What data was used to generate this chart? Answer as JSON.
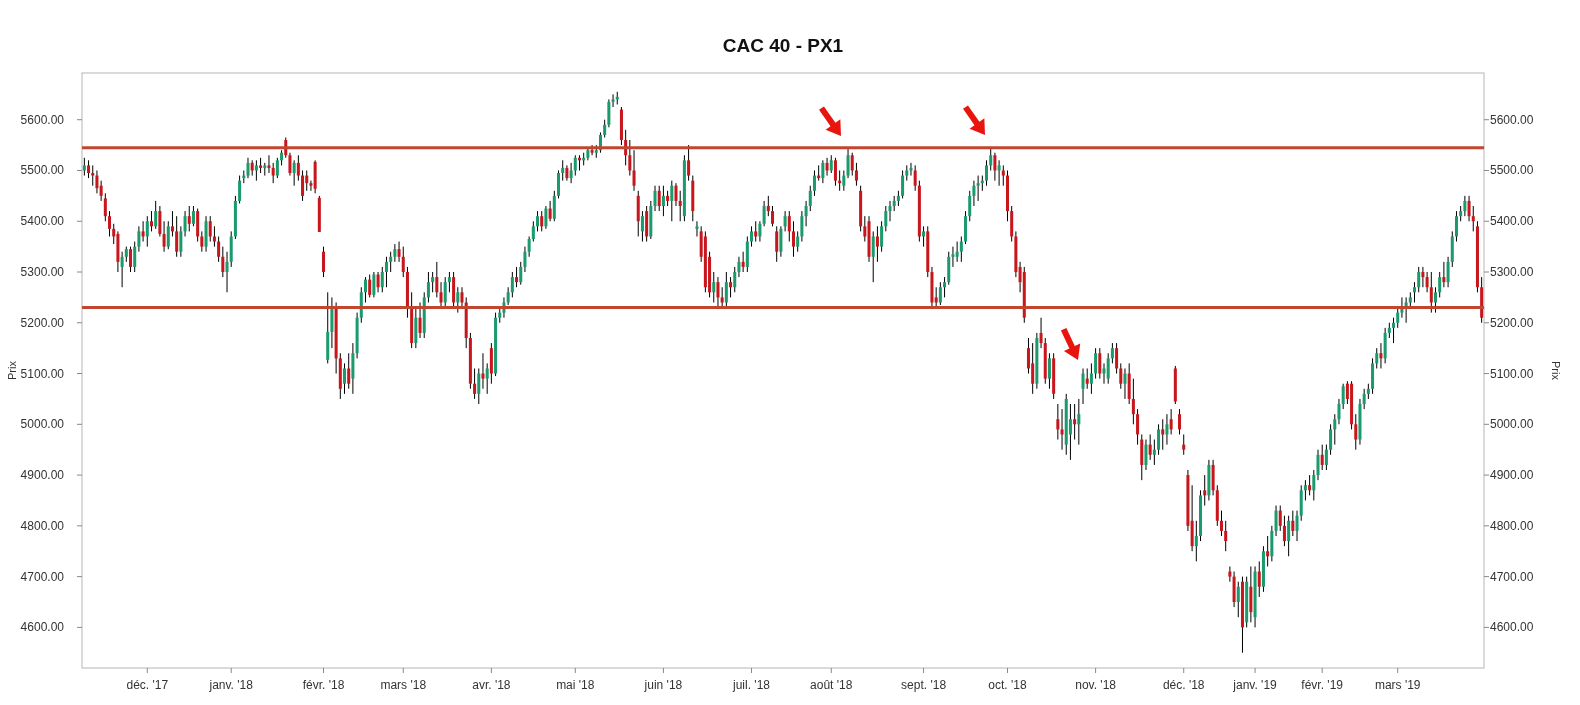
{
  "chart_data": {
    "type": "candlestick",
    "title": "CAC 40 - PX1",
    "ylabel": "Prix",
    "y2label": "Prix",
    "categories": [
      null,
      null,
      null,
      null,
      null,
      null,
      null,
      null,
      null,
      null,
      null,
      null,
      null,
      null,
      null,
      "déc. '17",
      null,
      null,
      null,
      null,
      null,
      null,
      null,
      null,
      null,
      null,
      null,
      null,
      null,
      null,
      null,
      null,
      null,
      null,
      null,
      "janv. '18",
      null,
      null,
      null,
      null,
      null,
      null,
      null,
      null,
      null,
      null,
      null,
      null,
      null,
      null,
      null,
      null,
      null,
      null,
      null,
      null,
      null,
      "févr. '18",
      null,
      null,
      null,
      null,
      null,
      null,
      null,
      null,
      null,
      null,
      null,
      null,
      null,
      null,
      null,
      null,
      null,
      null,
      "mars '18",
      null,
      null,
      null,
      null,
      null,
      null,
      null,
      null,
      null,
      null,
      null,
      null,
      null,
      null,
      null,
      null,
      null,
      null,
      null,
      null,
      "avr. '18",
      null,
      null,
      null,
      null,
      null,
      null,
      null,
      null,
      null,
      null,
      null,
      null,
      null,
      null,
      null,
      null,
      null,
      null,
      null,
      "mai '18",
      null,
      null,
      null,
      null,
      null,
      null,
      null,
      null,
      null,
      null,
      null,
      null,
      null,
      null,
      null,
      null,
      null,
      null,
      null,
      null,
      "juin '18",
      null,
      null,
      null,
      null,
      null,
      null,
      null,
      null,
      null,
      null,
      null,
      null,
      null,
      null,
      null,
      null,
      null,
      null,
      null,
      null,
      "juil. '18",
      null,
      null,
      null,
      null,
      null,
      null,
      null,
      null,
      null,
      null,
      null,
      null,
      null,
      null,
      null,
      null,
      null,
      null,
      "août '18",
      null,
      null,
      null,
      null,
      null,
      null,
      null,
      null,
      null,
      null,
      null,
      null,
      null,
      null,
      null,
      null,
      null,
      null,
      null,
      null,
      null,
      "sept. '18",
      null,
      null,
      null,
      null,
      null,
      null,
      null,
      null,
      null,
      null,
      null,
      null,
      null,
      null,
      null,
      null,
      null,
      null,
      null,
      "oct. '18",
      null,
      null,
      null,
      null,
      null,
      null,
      null,
      null,
      null,
      null,
      null,
      null,
      null,
      null,
      null,
      null,
      null,
      null,
      null,
      null,
      "nov. '18",
      null,
      null,
      null,
      null,
      null,
      null,
      null,
      null,
      null,
      null,
      null,
      null,
      null,
      null,
      null,
      null,
      null,
      null,
      null,
      null,
      "déc. '18",
      null,
      null,
      null,
      null,
      null,
      null,
      null,
      null,
      null,
      null,
      null,
      null,
      null,
      null,
      null,
      null,
      "janv. '19",
      null,
      null,
      null,
      null,
      null,
      null,
      null,
      null,
      null,
      null,
      null,
      null,
      null,
      null,
      null,
      "févr. '19",
      null,
      null,
      null,
      null,
      null,
      null,
      null,
      null,
      null,
      null,
      null,
      null,
      null,
      null,
      null,
      null,
      null,
      "mars '19",
      null,
      null,
      null,
      null,
      null,
      null,
      null,
      null,
      null,
      null,
      null,
      null,
      null,
      null,
      null,
      null,
      null,
      null,
      null,
      null
    ],
    "ohlc": [
      [
        5500,
        5525,
        5490,
        5510
      ],
      [
        5510,
        5520,
        5485,
        5495
      ],
      [
        5495,
        5510,
        5470,
        5490
      ],
      [
        5490,
        5500,
        5455,
        5465
      ],
      [
        5470,
        5480,
        5440,
        5450
      ],
      [
        5445,
        5455,
        5400,
        5410
      ],
      [
        5410,
        5420,
        5370,
        5385
      ],
      [
        5385,
        5395,
        5355,
        5370
      ],
      [
        5375,
        5380,
        5300,
        5320
      ],
      [
        5310,
        5340,
        5270,
        5330
      ],
      [
        5330,
        5350,
        5320,
        5345
      ],
      [
        5345,
        5350,
        5300,
        5310
      ],
      [
        5310,
        5360,
        5300,
        5350
      ],
      [
        5350,
        5390,
        5340,
        5380
      ],
      [
        5380,
        5400,
        5360,
        5370
      ],
      [
        5370,
        5410,
        5350,
        5400
      ],
      [
        5400,
        5420,
        5380,
        5390
      ],
      [
        5390,
        5440,
        5385,
        5420
      ],
      [
        5420,
        5430,
        5370,
        5375
      ],
      [
        5375,
        5400,
        5340,
        5350
      ],
      [
        5350,
        5400,
        5345,
        5390
      ],
      [
        5390,
        5420,
        5370,
        5380
      ],
      [
        5380,
        5410,
        5330,
        5340
      ],
      [
        5340,
        5390,
        5330,
        5380
      ],
      [
        5380,
        5420,
        5370,
        5410
      ],
      [
        5410,
        5430,
        5380,
        5395
      ],
      [
        5395,
        5430,
        5390,
        5420
      ],
      [
        5420,
        5425,
        5360,
        5370
      ],
      [
        5370,
        5380,
        5340,
        5350
      ],
      [
        5350,
        5410,
        5340,
        5400
      ],
      [
        5400,
        5410,
        5360,
        5370
      ],
      [
        5370,
        5390,
        5350,
        5360
      ],
      [
        5360,
        5370,
        5320,
        5330
      ],
      [
        5330,
        5350,
        5290,
        5300
      ],
      [
        5300,
        5340,
        5260,
        5320
      ],
      [
        5320,
        5380,
        5310,
        5370
      ],
      [
        5370,
        5450,
        5365,
        5440
      ],
      [
        5440,
        5490,
        5435,
        5480
      ],
      [
        5485,
        5500,
        5475,
        5490
      ],
      [
        5490,
        5525,
        5485,
        5515
      ],
      [
        5515,
        5520,
        5490,
        5500
      ],
      [
        5500,
        5520,
        5480,
        5510
      ],
      [
        5510,
        5525,
        5495,
        5505
      ],
      [
        5505,
        5515,
        5490,
        5510
      ],
      [
        5510,
        5530,
        5495,
        5505
      ],
      [
        5505,
        5515,
        5475,
        5490
      ],
      [
        5490,
        5525,
        5485,
        5520
      ],
      [
        5520,
        5540,
        5510,
        5535
      ],
      [
        5560,
        5565,
        5525,
        5530
      ],
      [
        5530,
        5535,
        5490,
        5495
      ],
      [
        5495,
        5520,
        5470,
        5515
      ],
      [
        5515,
        5530,
        5480,
        5490
      ],
      [
        5490,
        5500,
        5440,
        5450
      ],
      [
        5490,
        5500,
        5460,
        5475
      ],
      [
        5475,
        5480,
        5460,
        5470
      ],
      [
        5517,
        5520,
        5455,
        5464
      ],
      [
        5446,
        5450,
        5379,
        5379
      ],
      [
        5340,
        5350,
        5290,
        5300
      ],
      [
        5127,
        5260,
        5120,
        5182
      ],
      [
        5182,
        5250,
        5150,
        5230
      ],
      [
        5230,
        5240,
        5100,
        5130
      ],
      [
        5130,
        5140,
        5050,
        5070
      ],
      [
        5080,
        5120,
        5060,
        5110
      ],
      [
        5110,
        5140,
        5070,
        5080
      ],
      [
        5090,
        5160,
        5060,
        5140
      ],
      [
        5140,
        5220,
        5130,
        5210
      ],
      [
        5210,
        5270,
        5200,
        5260
      ],
      [
        5260,
        5290,
        5240,
        5285
      ],
      [
        5285,
        5295,
        5250,
        5255
      ],
      [
        5255,
        5300,
        5250,
        5295
      ],
      [
        5295,
        5300,
        5260,
        5270
      ],
      [
        5270,
        5310,
        5260,
        5300
      ],
      [
        5300,
        5330,
        5270,
        5320
      ],
      [
        5320,
        5340,
        5300,
        5330
      ],
      [
        5330,
        5355,
        5320,
        5345
      ],
      [
        5345,
        5360,
        5320,
        5330
      ],
      [
        5330,
        5350,
        5290,
        5300
      ],
      [
        5300,
        5310,
        5210,
        5230
      ],
      [
        5230,
        5260,
        5150,
        5160
      ],
      [
        5160,
        5230,
        5150,
        5210
      ],
      [
        5210,
        5240,
        5170,
        5180
      ],
      [
        5180,
        5260,
        5170,
        5250
      ],
      [
        5250,
        5300,
        5240,
        5280
      ],
      [
        5280,
        5300,
        5260,
        5290
      ],
      [
        5290,
        5320,
        5250,
        5260
      ],
      [
        5260,
        5280,
        5230,
        5240
      ],
      [
        5240,
        5290,
        5230,
        5280
      ],
      [
        5280,
        5300,
        5260,
        5290
      ],
      [
        5290,
        5300,
        5230,
        5240
      ],
      [
        5240,
        5270,
        5220,
        5260
      ],
      [
        5260,
        5270,
        5230,
        5240
      ],
      [
        5240,
        5250,
        5150,
        5170
      ],
      [
        5170,
        5180,
        5070,
        5080
      ],
      [
        5080,
        5110,
        5050,
        5060
      ],
      [
        5060,
        5110,
        5040,
        5100
      ],
      [
        5100,
        5140,
        5070,
        5090
      ],
      [
        5090,
        5120,
        5060,
        5110
      ],
      [
        5150,
        5160,
        5080,
        5100
      ],
      [
        5100,
        5220,
        5095,
        5210
      ],
      [
        5210,
        5230,
        5200,
        5220
      ],
      [
        5220,
        5250,
        5210,
        5240
      ],
      [
        5240,
        5270,
        5235,
        5260
      ],
      [
        5260,
        5300,
        5250,
        5290
      ],
      [
        5290,
        5310,
        5270,
        5280
      ],
      [
        5280,
        5320,
        5275,
        5310
      ],
      [
        5310,
        5350,
        5300,
        5340
      ],
      [
        5340,
        5370,
        5330,
        5365
      ],
      [
        5365,
        5400,
        5360,
        5390
      ],
      [
        5390,
        5420,
        5380,
        5410
      ],
      [
        5410,
        5420,
        5380,
        5390
      ],
      [
        5390,
        5430,
        5385,
        5425
      ],
      [
        5425,
        5440,
        5400,
        5405
      ],
      [
        5405,
        5460,
        5400,
        5450
      ],
      [
        5450,
        5500,
        5445,
        5495
      ],
      [
        5495,
        5520,
        5480,
        5505
      ],
      [
        5505,
        5510,
        5480,
        5485
      ],
      [
        5485,
        5515,
        5475,
        5500
      ],
      [
        5500,
        5530,
        5490,
        5525
      ],
      [
        5525,
        5530,
        5500,
        5520
      ],
      [
        5520,
        5535,
        5510,
        5525
      ],
      [
        5525,
        5545,
        5520,
        5540
      ],
      [
        5540,
        5550,
        5530,
        5535
      ],
      [
        5535,
        5550,
        5525,
        5540
      ],
      [
        5540,
        5575,
        5535,
        5570
      ],
      [
        5570,
        5600,
        5565,
        5590
      ],
      [
        5590,
        5640,
        5585,
        5635
      ],
      [
        5635,
        5650,
        5625,
        5640
      ],
      [
        5640,
        5655,
        5630,
        5645
      ],
      [
        5620,
        5625,
        5550,
        5560
      ],
      [
        5560,
        5580,
        5510,
        5530
      ],
      [
        5530,
        5560,
        5490,
        5500
      ],
      [
        5500,
        5540,
        5460,
        5470
      ],
      [
        5450,
        5460,
        5370,
        5400
      ],
      [
        5380,
        5420,
        5360,
        5410
      ],
      [
        5420,
        5430,
        5360,
        5370
      ],
      [
        5370,
        5440,
        5365,
        5430
      ],
      [
        5430,
        5470,
        5420,
        5460
      ],
      [
        5460,
        5470,
        5420,
        5430
      ],
      [
        5430,
        5470,
        5410,
        5450
      ],
      [
        5450,
        5460,
        5430,
        5440
      ],
      [
        5440,
        5480,
        5400,
        5470
      ],
      [
        5470,
        5475,
        5430,
        5440
      ],
      [
        5440,
        5460,
        5400,
        5430
      ],
      [
        5410,
        5530,
        5400,
        5520
      ],
      [
        5520,
        5550,
        5480,
        5490
      ],
      [
        5480,
        5490,
        5400,
        5420
      ],
      [
        5385,
        5400,
        5370,
        5390
      ],
      [
        5380,
        5390,
        5320,
        5330
      ],
      [
        5370,
        5380,
        5260,
        5270
      ],
      [
        5330,
        5340,
        5250,
        5260
      ],
      [
        5260,
        5300,
        5240,
        5280
      ],
      [
        5280,
        5290,
        5230,
        5250
      ],
      [
        5250,
        5270,
        5230,
        5240
      ],
      [
        5240,
        5300,
        5230,
        5280
      ],
      [
        5280,
        5290,
        5250,
        5270
      ],
      [
        5270,
        5310,
        5260,
        5300
      ],
      [
        5300,
        5330,
        5290,
        5320
      ],
      [
        5320,
        5340,
        5300,
        5310
      ],
      [
        5310,
        5370,
        5300,
        5360
      ],
      [
        5360,
        5390,
        5350,
        5380
      ],
      [
        5380,
        5400,
        5360,
        5370
      ],
      [
        5370,
        5400,
        5360,
        5395
      ],
      [
        5395,
        5440,
        5390,
        5430
      ],
      [
        5430,
        5450,
        5410,
        5420
      ],
      [
        5420,
        5430,
        5390,
        5395
      ],
      [
        5380,
        5390,
        5320,
        5340
      ],
      [
        5340,
        5390,
        5330,
        5385
      ],
      [
        5390,
        5420,
        5380,
        5410
      ],
      [
        5410,
        5420,
        5360,
        5380
      ],
      [
        5380,
        5400,
        5330,
        5350
      ],
      [
        5350,
        5380,
        5340,
        5370
      ],
      [
        5370,
        5420,
        5360,
        5410
      ],
      [
        5410,
        5440,
        5390,
        5430
      ],
      [
        5430,
        5470,
        5420,
        5460
      ],
      [
        5460,
        5500,
        5450,
        5490
      ],
      [
        5490,
        5510,
        5480,
        5485
      ],
      [
        5485,
        5520,
        5475,
        5515
      ],
      [
        5515,
        5525,
        5490,
        5500
      ],
      [
        5500,
        5530,
        5495,
        5520
      ],
      [
        5520,
        5525,
        5470,
        5480
      ],
      [
        5480,
        5500,
        5460,
        5475
      ],
      [
        5470,
        5500,
        5460,
        5490
      ],
      [
        5490,
        5545,
        5485,
        5530
      ],
      [
        5530,
        5535,
        5490,
        5500
      ],
      [
        5500,
        5515,
        5470,
        5480
      ],
      [
        5460,
        5470,
        5380,
        5390
      ],
      [
        5390,
        5410,
        5360,
        5370
      ],
      [
        5400,
        5410,
        5320,
        5330
      ],
      [
        5330,
        5380,
        5280,
        5370
      ],
      [
        5370,
        5390,
        5320,
        5350
      ],
      [
        5350,
        5400,
        5340,
        5390
      ],
      [
        5390,
        5430,
        5380,
        5420
      ],
      [
        5420,
        5440,
        5400,
        5430
      ],
      [
        5430,
        5450,
        5420,
        5440
      ],
      [
        5440,
        5460,
        5430,
        5450
      ],
      [
        5450,
        5500,
        5445,
        5490
      ],
      [
        5490,
        5510,
        5480,
        5500
      ],
      [
        5500,
        5515,
        5490,
        5505
      ],
      [
        5500,
        5510,
        5460,
        5470
      ],
      [
        5470,
        5480,
        5360,
        5370
      ],
      [
        5370,
        5390,
        5350,
        5380
      ],
      [
        5380,
        5390,
        5290,
        5300
      ],
      [
        5300,
        5310,
        5230,
        5240
      ],
      [
        5250,
        5270,
        5230,
        5240
      ],
      [
        5240,
        5280,
        5235,
        5270
      ],
      [
        5270,
        5290,
        5250,
        5280
      ],
      [
        5280,
        5340,
        5275,
        5330
      ],
      [
        5330,
        5350,
        5310,
        5335
      ],
      [
        5330,
        5360,
        5320,
        5340
      ],
      [
        5340,
        5370,
        5320,
        5360
      ],
      [
        5360,
        5420,
        5355,
        5410
      ],
      [
        5410,
        5460,
        5400,
        5450
      ],
      [
        5450,
        5480,
        5430,
        5470
      ],
      [
        5470,
        5490,
        5440,
        5475
      ],
      [
        5475,
        5490,
        5460,
        5480
      ],
      [
        5480,
        5520,
        5470,
        5510
      ],
      [
        5510,
        5545,
        5500,
        5530
      ],
      [
        5530,
        5535,
        5480,
        5500
      ],
      [
        5500,
        5520,
        5470,
        5510
      ],
      [
        5500,
        5510,
        5470,
        5490
      ],
      [
        5490,
        5500,
        5400,
        5420
      ],
      [
        5420,
        5430,
        5360,
        5370
      ],
      [
        5370,
        5380,
        5290,
        5300
      ],
      [
        5310,
        5320,
        5260,
        5280
      ],
      [
        5300,
        5310,
        5200,
        5210
      ],
      [
        5150,
        5170,
        5100,
        5110
      ],
      [
        5120,
        5160,
        5060,
        5080
      ],
      [
        5080,
        5180,
        5070,
        5170
      ],
      [
        5180,
        5210,
        5150,
        5160
      ],
      [
        5160,
        5170,
        5080,
        5090
      ],
      [
        5090,
        5140,
        5070,
        5130
      ],
      [
        5130,
        5140,
        5050,
        5060
      ],
      [
        5010,
        5040,
        4970,
        4990
      ],
      [
        4990,
        5030,
        4950,
        4980
      ],
      [
        4960,
        5060,
        4940,
        5050
      ],
      [
        4980,
        5040,
        4930,
        5010
      ],
      [
        5010,
        5040,
        4970,
        5000
      ],
      [
        5000,
        5050,
        4960,
        5020
      ],
      [
        5070,
        5110,
        5040,
        5100
      ],
      [
        5090,
        5110,
        5070,
        5080
      ],
      [
        5080,
        5120,
        5060,
        5100
      ],
      [
        5100,
        5150,
        5090,
        5140
      ],
      [
        5140,
        5150,
        5090,
        5100
      ],
      [
        5100,
        5120,
        5080,
        5110
      ],
      [
        5090,
        5140,
        5080,
        5130
      ],
      [
        5130,
        5160,
        5120,
        5150
      ],
      [
        5150,
        5160,
        5100,
        5110
      ],
      [
        5110,
        5120,
        5070,
        5080
      ],
      [
        5080,
        5110,
        5050,
        5100
      ],
      [
        5100,
        5120,
        5040,
        5050
      ],
      [
        5050,
        5090,
        5000,
        5020
      ],
      [
        5020,
        5030,
        4960,
        4980
      ],
      [
        4970,
        4980,
        4890,
        4920
      ],
      [
        4920,
        4970,
        4910,
        4960
      ],
      [
        4960,
        4980,
        4930,
        4940
      ],
      [
        4940,
        4970,
        4920,
        4950
      ],
      [
        4950,
        5000,
        4940,
        4990
      ],
      [
        4990,
        5010,
        4950,
        4980
      ],
      [
        4980,
        5020,
        4960,
        5000
      ],
      [
        5010,
        5030,
        4980,
        4990
      ],
      [
        5110,
        5115,
        5040,
        5045
      ],
      [
        5020,
        5030,
        4980,
        4990
      ],
      [
        4960,
        4980,
        4940,
        4950
      ],
      [
        4900,
        4910,
        4790,
        4800
      ],
      [
        4810,
        4880,
        4750,
        4760
      ],
      [
        4760,
        4810,
        4730,
        4780
      ],
      [
        4780,
        4870,
        4770,
        4860
      ],
      [
        4870,
        4900,
        4840,
        4860
      ],
      [
        4860,
        4930,
        4850,
        4920
      ],
      [
        4920,
        4930,
        4860,
        4870
      ],
      [
        4870,
        4880,
        4800,
        4810
      ],
      [
        4810,
        4830,
        4780,
        4790
      ],
      [
        4790,
        4810,
        4750,
        4770
      ],
      [
        4710,
        4720,
        4690,
        4700
      ],
      [
        4700,
        4710,
        4640,
        4650
      ],
      [
        4650,
        4690,
        4620,
        4680
      ],
      [
        4690,
        4700,
        4550,
        4600
      ],
      [
        4610,
        4700,
        4600,
        4690
      ],
      [
        4680,
        4720,
        4610,
        4630
      ],
      [
        4620,
        4720,
        4600,
        4710
      ],
      [
        4710,
        4730,
        4660,
        4680
      ],
      [
        4680,
        4760,
        4670,
        4750
      ],
      [
        4750,
        4780,
        4720,
        4740
      ],
      [
        4740,
        4800,
        4730,
        4790
      ],
      [
        4790,
        4840,
        4780,
        4830
      ],
      [
        4830,
        4840,
        4790,
        4800
      ],
      [
        4800,
        4820,
        4760,
        4770
      ],
      [
        4770,
        4820,
        4740,
        4810
      ],
      [
        4810,
        4830,
        4780,
        4790
      ],
      [
        4790,
        4830,
        4770,
        4820
      ],
      [
        4820,
        4880,
        4810,
        4870
      ],
      [
        4870,
        4890,
        4850,
        4880
      ],
      [
        4880,
        4900,
        4860,
        4870
      ],
      [
        4870,
        4910,
        4850,
        4900
      ],
      [
        4900,
        4950,
        4890,
        4940
      ],
      [
        4940,
        4960,
        4910,
        4920
      ],
      [
        4920,
        4960,
        4910,
        4950
      ],
      [
        4950,
        5000,
        4940,
        4990
      ],
      [
        4990,
        5020,
        4960,
        5010
      ],
      [
        5010,
        5050,
        5000,
        5040
      ],
      [
        5040,
        5080,
        5030,
        5075
      ],
      [
        5080,
        5085,
        5040,
        5050
      ],
      [
        5080,
        5085,
        4990,
        5000
      ],
      [
        5000,
        5020,
        4950,
        4970
      ],
      [
        4970,
        5050,
        4960,
        5040
      ],
      [
        5040,
        5070,
        5030,
        5060
      ],
      [
        5060,
        5080,
        5050,
        5070
      ],
      [
        5070,
        5130,
        5060,
        5120
      ],
      [
        5120,
        5150,
        5110,
        5140
      ],
      [
        5140,
        5160,
        5110,
        5130
      ],
      [
        5130,
        5190,
        5120,
        5180
      ],
      [
        5180,
        5200,
        5170,
        5190
      ],
      [
        5190,
        5210,
        5160,
        5200
      ],
      [
        5200,
        5230,
        5190,
        5220
      ],
      [
        5220,
        5250,
        5210,
        5230
      ],
      [
        5230,
        5250,
        5200,
        5240
      ],
      [
        5240,
        5260,
        5230,
        5250
      ],
      [
        5260,
        5280,
        5240,
        5270
      ],
      [
        5270,
        5310,
        5260,
        5300
      ],
      [
        5300,
        5310,
        5270,
        5290
      ],
      [
        5290,
        5300,
        5260,
        5270
      ],
      [
        5270,
        5300,
        5220,
        5240
      ],
      [
        5240,
        5270,
        5220,
        5260
      ],
      [
        5260,
        5300,
        5250,
        5290
      ],
      [
        5290,
        5320,
        5270,
        5280
      ],
      [
        5280,
        5330,
        5270,
        5320
      ],
      [
        5320,
        5380,
        5310,
        5370
      ],
      [
        5370,
        5420,
        5360,
        5410
      ],
      [
        5410,
        5430,
        5400,
        5420
      ],
      [
        5420,
        5450,
        5410,
        5440
      ],
      [
        5440,
        5450,
        5400,
        5410
      ],
      [
        5410,
        5430,
        5380,
        5400
      ],
      [
        5390,
        5400,
        5260,
        5270
      ],
      [
        5270,
        5290,
        5200,
        5210
      ]
    ],
    "colors": [
      "#1b9a6c",
      "#c8161d",
      "#c8161d",
      "#c8161d",
      "#c8161d",
      "#c8161d",
      "#c8161d",
      "#c8161d",
      "#c8161d",
      "#1b9a6c",
      "#1b9a6c",
      "#c8161d",
      "#1b9a6c",
      "#1b9a6c",
      "#c8161d",
      "#1b9a6c",
      "#c8161d",
      "#1b9a6c",
      "#c8161d",
      "#c8161d",
      "#1b9a6c",
      "#c8161d",
      "#c8161d",
      "#1b9a6c",
      "#1b9a6c",
      "#c8161d",
      "#1b9a6c",
      "#c8161d",
      "#c8161d",
      "#1b9a6c",
      "#c8161d",
      "#c8161d",
      "#c8161d",
      "#c8161d",
      "#1b9a6c",
      "#1b9a6c",
      "#1b9a6c",
      "#1b9a6c",
      "#1b9a6c",
      "#1b9a6c",
      "#c8161d",
      "#1b9a6c",
      "#c8161d",
      "#1b9a6c",
      "#c8161d",
      "#c8161d",
      "#1b9a6c",
      "#1b9a6c",
      "#c8161d",
      "#c8161d",
      "#1b9a6c",
      "#c8161d",
      "#c8161d",
      "#c8161d",
      "#c8161d",
      "#c8161d",
      "#c8161d",
      "#c8161d",
      "#1b9a6c",
      "#1b9a6c",
      "#c8161d",
      "#c8161d",
      "#1b9a6c",
      "#c8161d",
      "#1b9a6c",
      "#1b9a6c",
      "#1b9a6c",
      "#1b9a6c",
      "#c8161d",
      "#1b9a6c",
      "#c8161d",
      "#1b9a6c",
      "#1b9a6c",
      "#1b9a6c",
      "#1b9a6c",
      "#c8161d",
      "#c8161d",
      "#c8161d",
      "#c8161d",
      "#1b9a6c",
      "#c8161d",
      "#1b9a6c",
      "#1b9a6c",
      "#1b9a6c",
      "#c8161d",
      "#c8161d",
      "#1b9a6c",
      "#1b9a6c",
      "#c8161d",
      "#1b9a6c",
      "#c8161d",
      "#c8161d",
      "#c8161d",
      "#c8161d",
      "#1b9a6c",
      "#c8161d",
      "#1b9a6c",
      "#c8161d",
      "#1b9a6c",
      "#1b9a6c",
      "#1b9a6c",
      "#1b9a6c",
      "#1b9a6c",
      "#c8161d",
      "#1b9a6c",
      "#1b9a6c",
      "#1b9a6c",
      "#1b9a6c",
      "#1b9a6c",
      "#c8161d",
      "#1b9a6c",
      "#c8161d",
      "#1b9a6c",
      "#1b9a6c",
      "#1b9a6c",
      "#c8161d",
      "#1b9a6c",
      "#1b9a6c",
      "#c8161d",
      "#1b9a6c",
      "#1b9a6c",
      "#c8161d",
      "#1b9a6c",
      "#1b9a6c",
      "#1b9a6c",
      "#1b9a6c",
      "#1b9a6c",
      "#1b9a6c",
      "#c8161d",
      "#c8161d",
      "#c8161d",
      "#c8161d",
      "#c8161d",
      "#1b9a6c",
      "#c8161d",
      "#1b9a6c",
      "#1b9a6c",
      "#c8161d",
      "#1b9a6c",
      "#c8161d",
      "#1b9a6c",
      "#c8161d",
      "#c8161d",
      "#1b9a6c",
      "#c8161d",
      "#c8161d",
      "#1b9a6c",
      "#c8161d",
      "#c8161d",
      "#c8161d",
      "#1b9a6c",
      "#c8161d",
      "#c8161d",
      "#1b9a6c",
      "#c8161d",
      "#1b9a6c",
      "#1b9a6c",
      "#c8161d",
      "#1b9a6c",
      "#1b9a6c",
      "#c8161d",
      "#1b9a6c",
      "#1b9a6c",
      "#c8161d",
      "#c8161d",
      "#c8161d",
      "#1b9a6c",
      "#1b9a6c",
      "#c8161d",
      "#c8161d",
      "#1b9a6c",
      "#1b9a6c",
      "#1b9a6c",
      "#1b9a6c",
      "#1b9a6c",
      "#c8161d",
      "#1b9a6c",
      "#c8161d",
      "#1b9a6c",
      "#c8161d",
      "#c8161d",
      "#1b9a6c",
      "#1b9a6c",
      "#c8161d",
      "#c8161d",
      "#c8161d",
      "#c8161d",
      "#c8161d",
      "#1b9a6c",
      "#c8161d",
      "#1b9a6c",
      "#1b9a6c",
      "#1b9a6c",
      "#1b9a6c",
      "#1b9a6c",
      "#1b9a6c",
      "#1b9a6c",
      "#1b9a6c",
      "#c8161d",
      "#c8161d",
      "#1b9a6c",
      "#c8161d",
      "#c8161d",
      "#c8161d",
      "#1b9a6c",
      "#1b9a6c",
      "#1b9a6c",
      "#1b9a6c",
      "#1b9a6c",
      "#1b9a6c",
      "#1b9a6c",
      "#1b9a6c",
      "#1b9a6c",
      "#1b9a6c",
      "#1b9a6c",
      "#1b9a6c",
      "#1b9a6c",
      "#c8161d",
      "#1b9a6c",
      "#c8161d",
      "#c8161d",
      "#c8161d",
      "#c8161d",
      "#c8161d",
      "#c8161d",
      "#c8161d",
      "#c8161d",
      "#1b9a6c",
      "#c8161d",
      "#c8161d",
      "#1b9a6c",
      "#c8161d",
      "#c8161d",
      "#c8161d",
      "#1b9a6c",
      "#1b9a6c",
      "#c8161d",
      "#1b9a6c",
      "#1b9a6c",
      "#c8161d",
      "#1b9a6c",
      "#1b9a6c",
      "#c8161d",
      "#1b9a6c",
      "#1b9a6c",
      "#1b9a6c",
      "#c8161d",
      "#c8161d",
      "#1b9a6c",
      "#c8161d",
      "#c8161d",
      "#c8161d",
      "#c8161d",
      "#1b9a6c",
      "#c8161d",
      "#1b9a6c",
      "#1b9a6c",
      "#c8161d",
      "#1b9a6c",
      "#c8161d",
      "#c8161d",
      "#c8161d",
      "#c8161d",
      "#c8161d",
      "#c8161d",
      "#1b9a6c",
      "#1b9a6c",
      "#c8161d",
      "#1b9a6c",
      "#c8161d",
      "#c8161d",
      "#c8161d",
      "#c8161d",
      "#c8161d",
      "#c8161d",
      "#1b9a6c",
      "#c8161d",
      "#1b9a6c",
      "#c8161d",
      "#1b9a6c",
      "#c8161d",
      "#1b9a6c",
      "#c8161d",
      "#1b9a6c",
      "#1b9a6c",
      "#c8161d",
      "#c8161d",
      "#1b9a6c",
      "#c8161d",
      "#1b9a6c",
      "#1b9a6c",
      "#1b9a6c",
      "#c8161d",
      "#1b9a6c",
      "#1b9a6c",
      "#c8161d",
      "#1b9a6c",
      "#1b9a6c",
      "#1b9a6c",
      "#1b9a6c",
      "#1b9a6c",
      "#c8161d",
      "#c8161d",
      "#c8161d",
      "#1b9a6c",
      "#1b9a6c",
      "#1b9a6c",
      "#1b9a6c",
      "#1b9a6c",
      "#c8161d",
      "#1b9a6c",
      "#1b9a6c",
      "#1b9a6c",
      "#1b9a6c",
      "#1b9a6c",
      "#1b9a6c",
      "#1b9a6c",
      "#1b9a6c",
      "#1b9a6c",
      "#c8161d",
      "#c8161d",
      "#c8161d",
      "#1b9a6c",
      "#1b9a6c",
      "#c8161d",
      "#1b9a6c",
      "#1b9a6c",
      "#1b9a6c",
      "#1b9a6c",
      "#1b9a6c",
      "#c8161d",
      "#c8161d",
      "#c8161d",
      "#c8161d"
    ],
    "ylim": [
      4520,
      5692
    ],
    "yticks": [
      {
        "value": 4600,
        "label": "4600.00"
      },
      {
        "value": 4700,
        "label": "4700.00"
      },
      {
        "value": 4800,
        "label": "4800.00"
      },
      {
        "value": 4900,
        "label": "4900.00"
      },
      {
        "value": 5000,
        "label": "5000.00"
      },
      {
        "value": 5100,
        "label": "5100.00"
      },
      {
        "value": 5200,
        "label": "5200.00"
      },
      {
        "value": 5300,
        "label": "5300.00"
      },
      {
        "value": 5400,
        "label": "5400.00"
      },
      {
        "value": 5500,
        "label": "5500.00"
      },
      {
        "value": 5600,
        "label": "5600.00"
      }
    ],
    "y2lim": [
      4520,
      5692
    ],
    "y2ticks": [
      {
        "value": 4600,
        "label": "4600.00"
      },
      {
        "value": 4700,
        "label": "4700.00"
      },
      {
        "value": 4800,
        "label": "4800.00"
      },
      {
        "value": 4900,
        "label": "4900.00"
      },
      {
        "value": 5000,
        "label": "5000.00"
      },
      {
        "value": 5100,
        "label": "5100.00"
      },
      {
        "value": 5200,
        "label": "5200.00"
      },
      {
        "value": 5300,
        "label": "5300.00"
      },
      {
        "value": 5400,
        "label": "5400.00"
      },
      {
        "value": 5500,
        "label": "5500.00"
      },
      {
        "value": 5600,
        "label": "5600.00"
      }
    ],
    "ref_lines": [
      {
        "axis": "y",
        "value": 5545,
        "color": "#c0462f"
      },
      {
        "axis": "y",
        "value": 5230,
        "color": "#c0462f"
      }
    ]
  }
}
